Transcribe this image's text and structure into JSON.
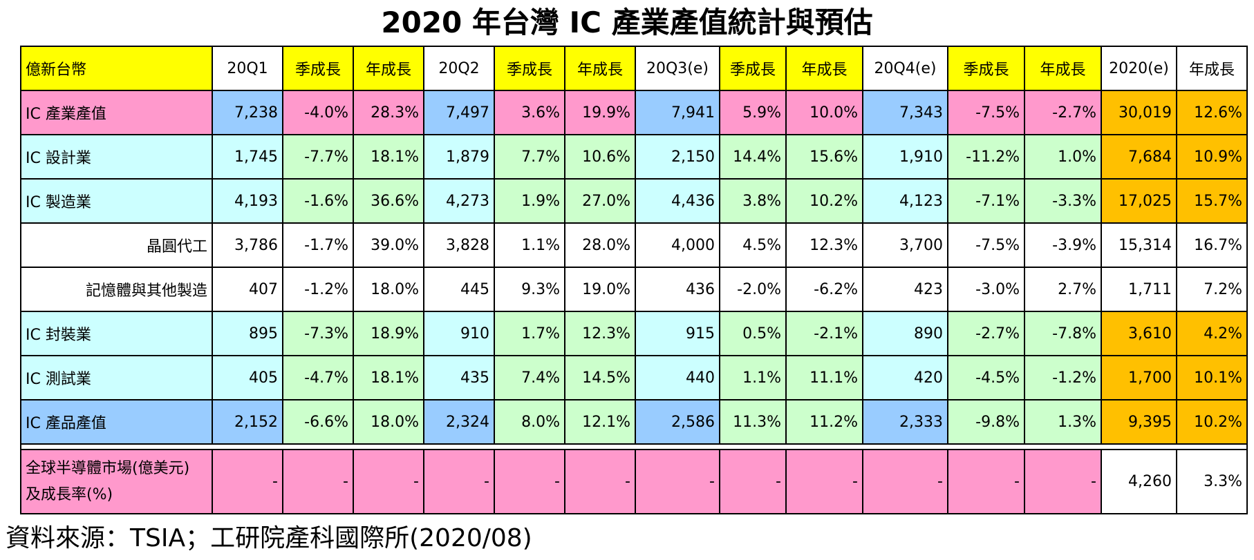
{
  "title": "2020 年台灣 IC 產業產值統計與預估",
  "colors": {
    "yellow": "#ffff00",
    "pink": "#ff99cc",
    "blue": "#99ccff",
    "cyan": "#ccffff",
    "green": "#ccffcc",
    "orange": "#ffc000",
    "white": "#ffffff"
  },
  "header": [
    "億新台幣",
    "20Q1",
    "季成長",
    "年成長",
    "20Q2",
    "季成長",
    "年成長",
    "20Q3(e)",
    "季成長",
    "年成長",
    "20Q4(e)",
    "季成長",
    "年成長",
    "2020(e)",
    "年成長"
  ],
  "rows": [
    {
      "label": "IC 產業產值",
      "values": [
        "7,238",
        "-4.0%",
        "28.3%",
        "7,497",
        "3.6%",
        "19.9%",
        "7,941",
        "5.9%",
        "10.0%",
        "7,343",
        "-7.5%",
        "-2.7%",
        "30,019",
        "12.6%"
      ]
    },
    {
      "label": "IC 設計業",
      "values": [
        "1,745",
        "-7.7%",
        "18.1%",
        "1,879",
        "7.7%",
        "10.6%",
        "2,150",
        "14.4%",
        "15.6%",
        "1,910",
        "-11.2%",
        "1.0%",
        "7,684",
        "10.9%"
      ]
    },
    {
      "label": "IC 製造業",
      "values": [
        "4,193",
        "-1.6%",
        "36.6%",
        "4,273",
        "1.9%",
        "27.0%",
        "4,436",
        "3.8%",
        "10.2%",
        "4,123",
        "-7.1%",
        "-3.3%",
        "17,025",
        "15.7%"
      ]
    },
    {
      "label": "晶圓代工",
      "values": [
        "3,786",
        "-1.7%",
        "39.0%",
        "3,828",
        "1.1%",
        "28.0%",
        "4,000",
        "4.5%",
        "12.3%",
        "3,700",
        "-7.5%",
        "-3.9%",
        "15,314",
        "16.7%"
      ]
    },
    {
      "label": "記憶體與其他製造",
      "values": [
        "407",
        "-1.2%",
        "18.0%",
        "445",
        "9.3%",
        "19.0%",
        "436",
        "-2.0%",
        "-6.2%",
        "423",
        "-3.0%",
        "2.7%",
        "1,711",
        "7.2%"
      ]
    },
    {
      "label": "IC 封裝業",
      "values": [
        "895",
        "-7.3%",
        "18.9%",
        "910",
        "1.7%",
        "12.3%",
        "915",
        "0.5%",
        "-2.1%",
        "890",
        "-2.7%",
        "-7.8%",
        "3,610",
        "4.2%"
      ]
    },
    {
      "label": "IC 測試業",
      "values": [
        "405",
        "-4.7%",
        "18.1%",
        "435",
        "7.4%",
        "14.5%",
        "440",
        "1.1%",
        "11.1%",
        "420",
        "-4.5%",
        "-1.2%",
        "1,700",
        "10.1%"
      ]
    },
    {
      "label": "IC 產品產值",
      "values": [
        "2,152",
        "-6.6%",
        "18.0%",
        "2,324",
        "8.0%",
        "12.1%",
        "2,586",
        "11.3%",
        "11.2%",
        "2,333",
        "-9.8%",
        "1.3%",
        "9,395",
        "10.2%"
      ]
    }
  ],
  "global": {
    "label_line1": "全球半導體市場(億美元)",
    "label_line2": "及成長率(%)",
    "values": [
      "-",
      "-",
      "-",
      "-",
      "-",
      "-",
      "-",
      "-",
      "-",
      "-",
      "-",
      "-",
      "4,260",
      "3.3%"
    ]
  },
  "source": "資料來源：TSIA；工研院產科國際所(2020/08)"
}
